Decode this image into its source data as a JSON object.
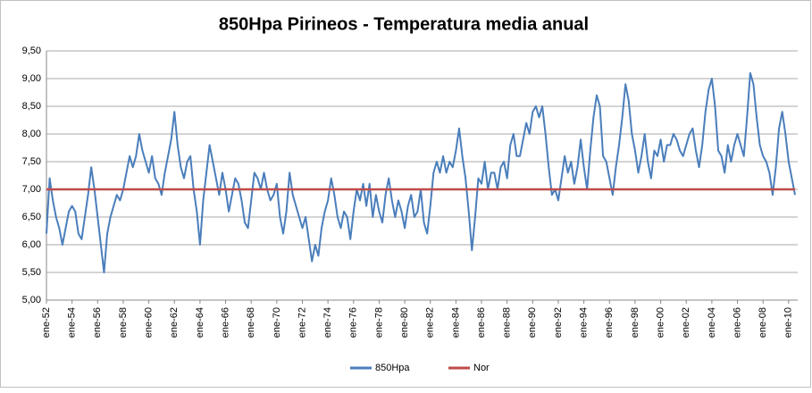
{
  "chart_data": {
    "type": "line",
    "title": "850Hpa Pirineos - Temperatura media anual",
    "categories": [
      "ene-52",
      null,
      null,
      null,
      null,
      null,
      null,
      null,
      "ene-54",
      null,
      null,
      null,
      null,
      null,
      null,
      null,
      "ene-56",
      null,
      null,
      null,
      null,
      null,
      null,
      null,
      "ene-58",
      null,
      null,
      null,
      null,
      null,
      null,
      null,
      "ene-60",
      null,
      null,
      null,
      null,
      null,
      null,
      null,
      "ene-62",
      null,
      null,
      null,
      null,
      null,
      null,
      null,
      "ene-64",
      null,
      null,
      null,
      null,
      null,
      null,
      null,
      "ene-66",
      null,
      null,
      null,
      null,
      null,
      null,
      null,
      "ene-68",
      null,
      null,
      null,
      null,
      null,
      null,
      null,
      "ene-70",
      null,
      null,
      null,
      null,
      null,
      null,
      null,
      "ene-72",
      null,
      null,
      null,
      null,
      null,
      null,
      null,
      "ene-74",
      null,
      null,
      null,
      null,
      null,
      null,
      null,
      "ene-76",
      null,
      null,
      null,
      null,
      null,
      null,
      null,
      "ene-78",
      null,
      null,
      null,
      null,
      null,
      null,
      null,
      "ene-80",
      null,
      null,
      null,
      null,
      null,
      null,
      null,
      "ene-82",
      null,
      null,
      null,
      null,
      null,
      null,
      null,
      "ene-84",
      null,
      null,
      null,
      null,
      null,
      null,
      null,
      "ene-86",
      null,
      null,
      null,
      null,
      null,
      null,
      null,
      "ene-88",
      null,
      null,
      null,
      null,
      null,
      null,
      null,
      "ene-90",
      null,
      null,
      null,
      null,
      null,
      null,
      null,
      "ene-92",
      null,
      null,
      null,
      null,
      null,
      null,
      null,
      "ene-94",
      null,
      null,
      null,
      null,
      null,
      null,
      null,
      "ene-96",
      null,
      null,
      null,
      null,
      null,
      null,
      null,
      "ene-98",
      null,
      null,
      null,
      null,
      null,
      null,
      null,
      "ene-00",
      null,
      null,
      null,
      null,
      null,
      null,
      null,
      "ene-02",
      null,
      null,
      null,
      null,
      null,
      null,
      null,
      "ene-04",
      null,
      null,
      null,
      null,
      null,
      null,
      null,
      "ene-06",
      null,
      null,
      null,
      null,
      null,
      null,
      null,
      "ene-08",
      null,
      null,
      null,
      null,
      null,
      null,
      null,
      "ene-10",
      null,
      null
    ],
    "series": [
      {
        "name": "850Hpa",
        "color": "#4a7ebb",
        "values": [
          6.2,
          7.2,
          6.8,
          6.5,
          6.3,
          6.0,
          6.3,
          6.6,
          6.7,
          6.6,
          6.2,
          6.1,
          6.5,
          6.9,
          7.4,
          7.0,
          6.5,
          6.0,
          5.5,
          6.2,
          6.5,
          6.7,
          6.9,
          6.8,
          7.0,
          7.3,
          7.6,
          7.4,
          7.6,
          8.0,
          7.7,
          7.5,
          7.3,
          7.6,
          7.2,
          7.1,
          6.9,
          7.3,
          7.6,
          7.9,
          8.4,
          7.8,
          7.4,
          7.2,
          7.5,
          7.6,
          7.0,
          6.6,
          6.0,
          6.8,
          7.3,
          7.8,
          7.5,
          7.2,
          6.9,
          7.3,
          7.0,
          6.6,
          6.9,
          7.2,
          7.1,
          6.8,
          6.4,
          6.3,
          6.8,
          7.3,
          7.2,
          7.0,
          7.3,
          7.0,
          6.8,
          6.9,
          7.1,
          6.5,
          6.2,
          6.6,
          7.3,
          6.9,
          6.7,
          6.5,
          6.3,
          6.5,
          6.1,
          5.7,
          6.0,
          5.8,
          6.3,
          6.6,
          6.8,
          7.2,
          6.9,
          6.5,
          6.3,
          6.6,
          6.5,
          6.1,
          6.6,
          7.0,
          6.8,
          7.1,
          6.7,
          7.1,
          6.5,
          6.9,
          6.6,
          6.4,
          6.9,
          7.2,
          6.8,
          6.5,
          6.8,
          6.6,
          6.3,
          6.7,
          6.9,
          6.5,
          6.6,
          7.0,
          6.4,
          6.2,
          6.7,
          7.3,
          7.5,
          7.3,
          7.6,
          7.3,
          7.5,
          7.4,
          7.7,
          8.1,
          7.6,
          7.2,
          6.6,
          5.9,
          6.5,
          7.2,
          7.1,
          7.5,
          7.0,
          7.3,
          7.3,
          7.0,
          7.4,
          7.5,
          7.2,
          7.8,
          8.0,
          7.6,
          7.6,
          7.9,
          8.2,
          8.0,
          8.4,
          8.5,
          8.3,
          8.5,
          8.0,
          7.4,
          6.9,
          7.0,
          6.8,
          7.2,
          7.6,
          7.3,
          7.5,
          7.1,
          7.4,
          7.9,
          7.4,
          7.0,
          7.7,
          8.3,
          8.7,
          8.5,
          7.6,
          7.5,
          7.2,
          6.9,
          7.4,
          7.8,
          8.3,
          8.9,
          8.6,
          8.0,
          7.7,
          7.3,
          7.6,
          8.0,
          7.5,
          7.2,
          7.7,
          7.6,
          7.9,
          7.5,
          7.8,
          7.8,
          8.0,
          7.9,
          7.7,
          7.6,
          7.8,
          8.0,
          8.1,
          7.7,
          7.4,
          7.8,
          8.4,
          8.8,
          9.0,
          8.5,
          7.7,
          7.6,
          7.3,
          7.8,
          7.5,
          7.8,
          8.0,
          7.8,
          7.6,
          8.3,
          9.1,
          8.9,
          8.3,
          7.8,
          7.6,
          7.5,
          7.3,
          6.9,
          7.4,
          8.1,
          8.4,
          8.0,
          7.5,
          7.2,
          6.9
        ]
      },
      {
        "name": "Nor",
        "color": "#be4b48",
        "values": [
          7,
          7,
          7,
          7,
          7,
          7,
          7,
          7,
          7,
          7,
          7,
          7,
          7,
          7,
          7,
          7,
          7,
          7,
          7,
          7,
          7,
          7,
          7,
          7,
          7,
          7,
          7,
          7,
          7,
          7,
          7,
          7,
          7,
          7,
          7,
          7,
          7,
          7,
          7,
          7,
          7,
          7,
          7,
          7,
          7,
          7,
          7,
          7,
          7,
          7,
          7,
          7,
          7,
          7,
          7,
          7,
          7,
          7,
          7,
          7,
          7,
          7,
          7,
          7,
          7,
          7,
          7,
          7,
          7,
          7,
          7,
          7,
          7,
          7,
          7,
          7,
          7,
          7,
          7,
          7,
          7,
          7,
          7,
          7,
          7,
          7,
          7,
          7,
          7,
          7,
          7,
          7,
          7,
          7,
          7,
          7,
          7,
          7,
          7,
          7,
          7,
          7,
          7,
          7,
          7,
          7,
          7,
          7,
          7,
          7,
          7,
          7,
          7,
          7,
          7,
          7,
          7,
          7,
          7,
          7,
          7,
          7,
          7,
          7,
          7,
          7,
          7,
          7,
          7,
          7,
          7,
          7,
          7,
          7,
          7,
          7,
          7,
          7,
          7,
          7,
          7,
          7,
          7,
          7,
          7,
          7,
          7,
          7,
          7,
          7,
          7,
          7,
          7,
          7,
          7,
          7,
          7,
          7,
          7,
          7,
          7,
          7,
          7,
          7,
          7,
          7,
          7,
          7,
          7,
          7,
          7,
          7,
          7,
          7,
          7,
          7,
          7,
          7,
          7,
          7,
          7,
          7,
          7,
          7,
          7,
          7,
          7,
          7,
          7,
          7,
          7,
          7,
          7,
          7,
          7,
          7,
          7,
          7,
          7,
          7,
          7,
          7,
          7,
          7,
          7,
          7,
          7,
          7,
          7,
          7,
          7,
          7,
          7,
          7,
          7,
          7,
          7,
          7,
          7,
          7,
          7,
          7,
          7,
          7,
          7,
          7,
          7,
          7,
          7,
          7,
          7,
          7,
          7,
          7,
          7
        ]
      }
    ],
    "ylim": [
      5,
      9.5
    ],
    "yticks": [
      {
        "value": 5,
        "label": "5,00"
      },
      {
        "value": 5.5,
        "label": "5,50"
      },
      {
        "value": 6,
        "label": "6,00"
      },
      {
        "value": 6.5,
        "label": "6,50"
      },
      {
        "value": 7,
        "label": "7,00"
      },
      {
        "value": 7.5,
        "label": "7,50"
      },
      {
        "value": 8,
        "label": "8,00"
      },
      {
        "value": 8.5,
        "label": "8,50"
      },
      {
        "value": 9,
        "label": "9,00"
      },
      {
        "value": 9.5,
        "label": "9,50"
      }
    ],
    "grid": true,
    "legend": "bottom"
  }
}
